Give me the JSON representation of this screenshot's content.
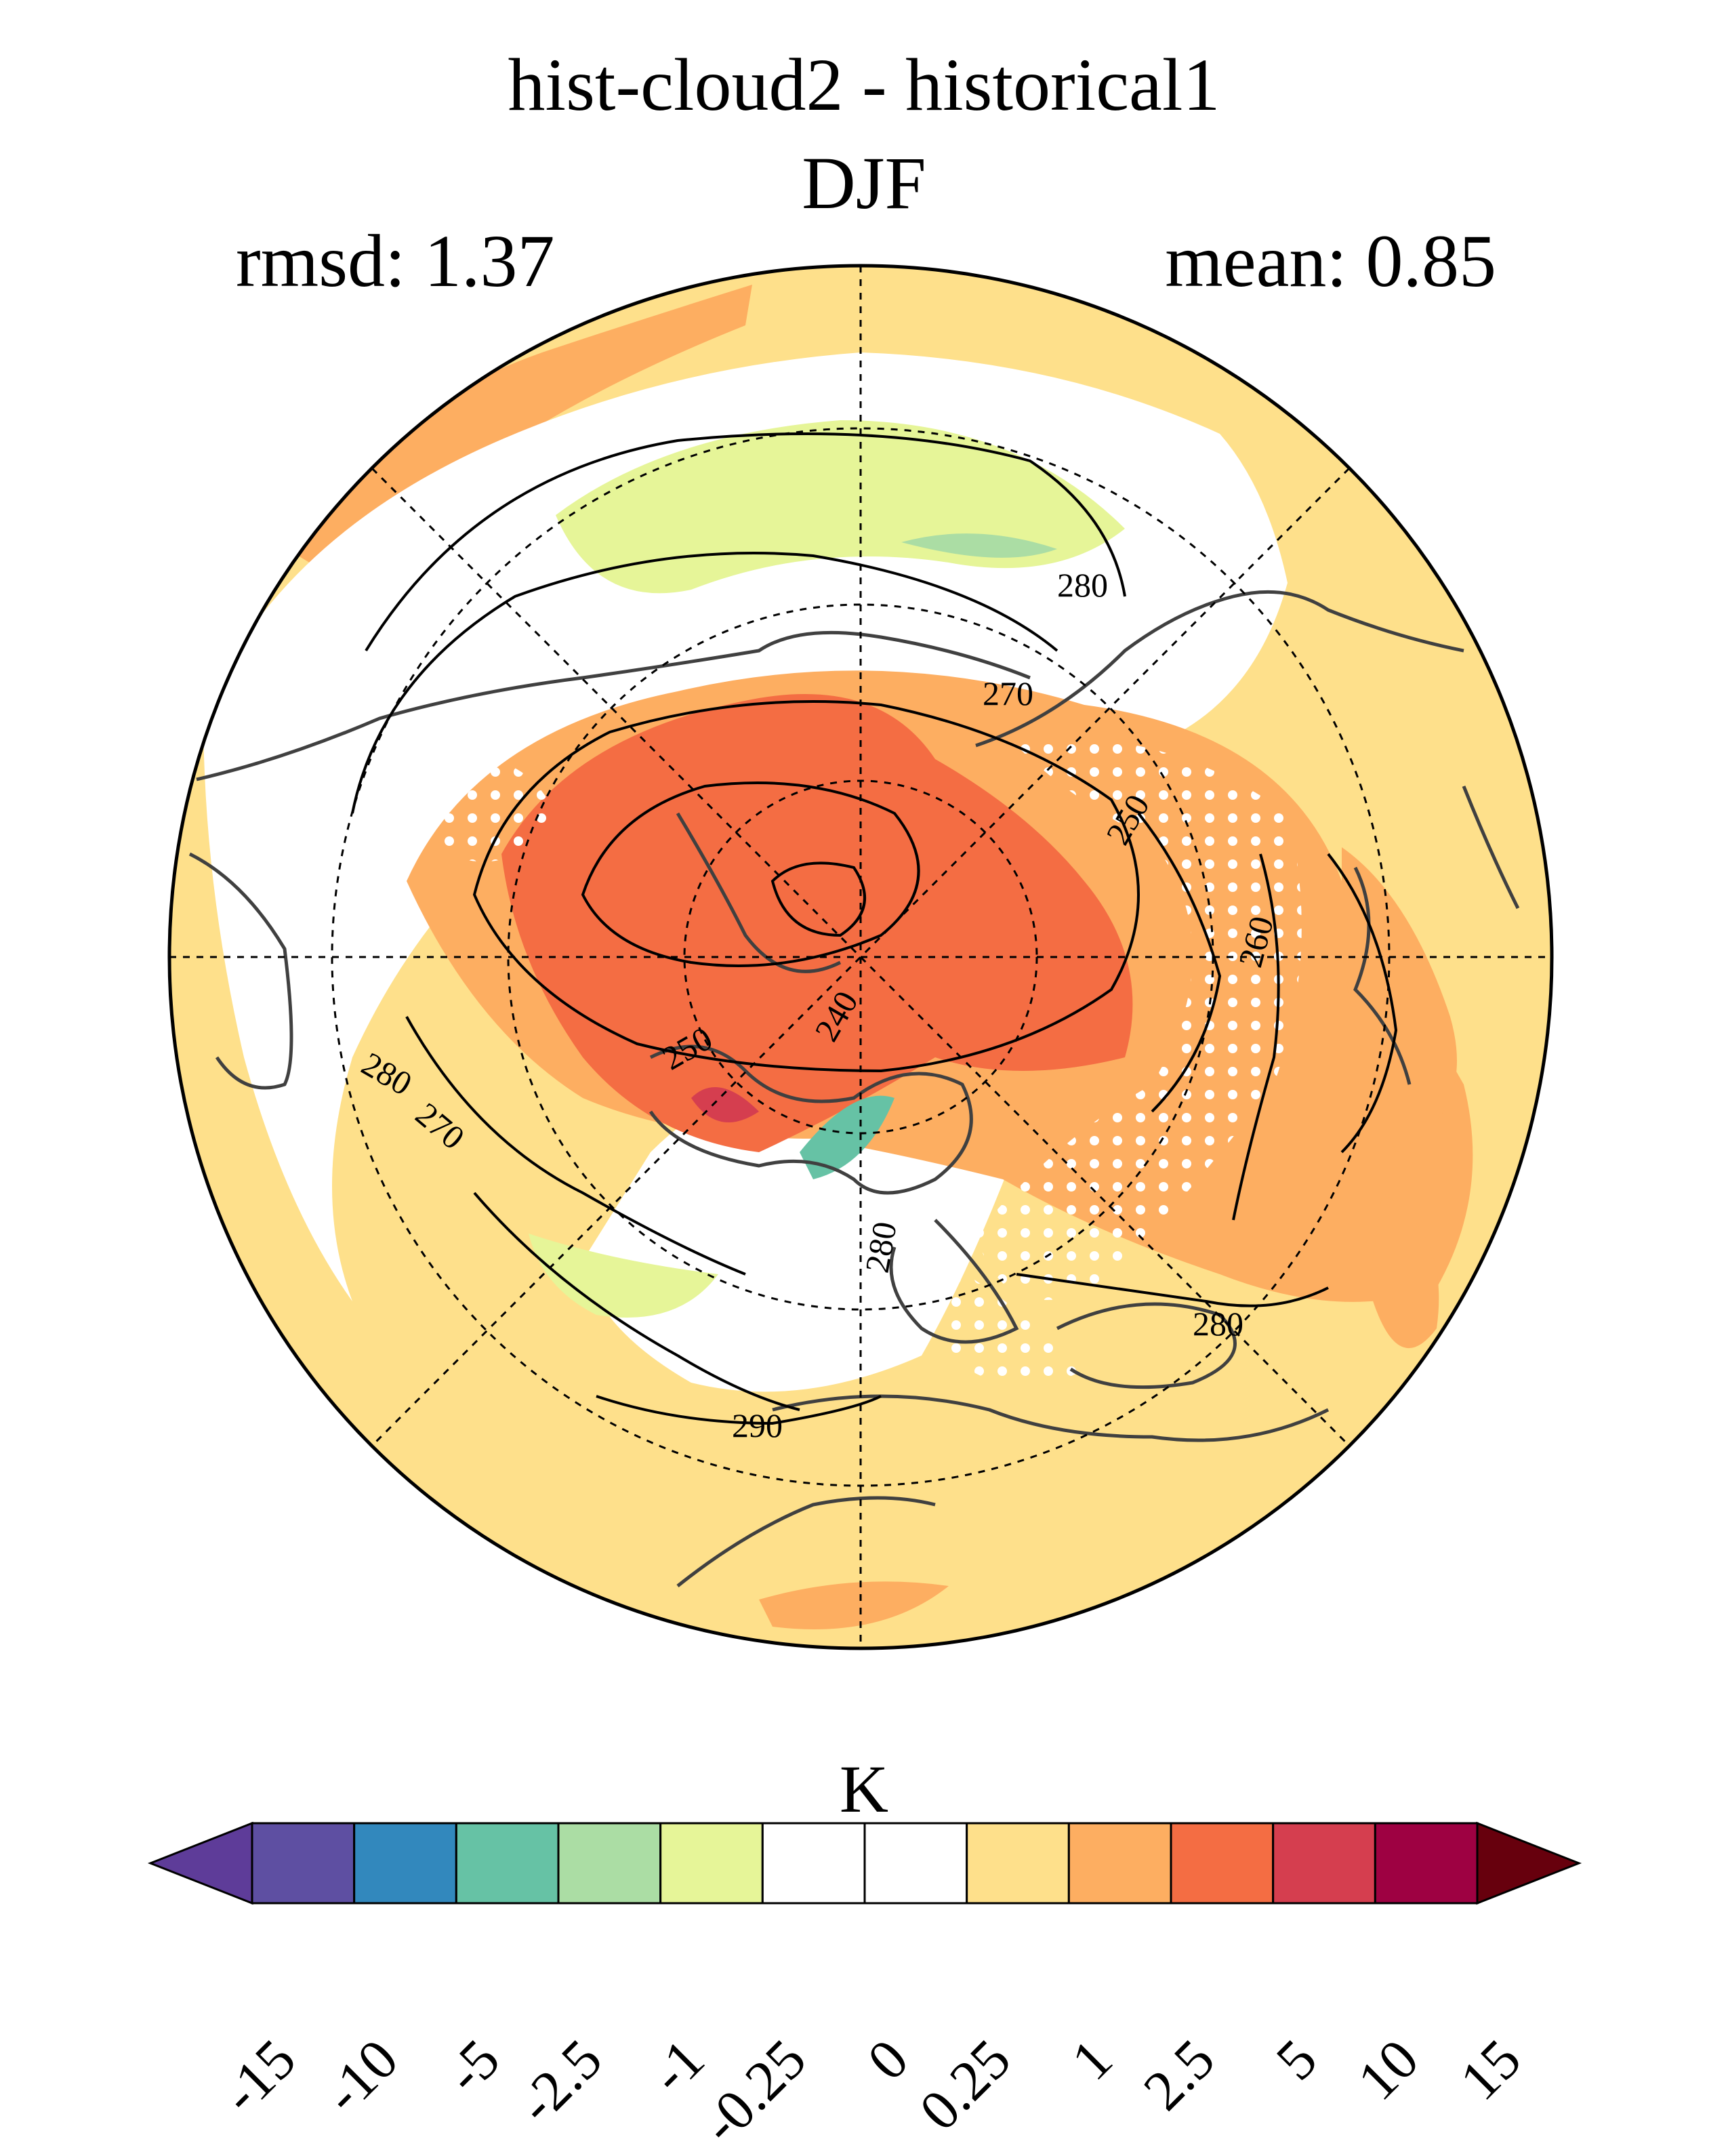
{
  "title_line1": "hist-cloud2 - historical1",
  "title_line2": "DJF",
  "rmsd_text": "rmsd: 1.37",
  "mean_text": "mean: 0.85",
  "map": {
    "projection": "polar-stereographic",
    "hemisphere": "north",
    "contour_labels": [
      "280",
      "270",
      "250",
      "260",
      "240",
      "250",
      "280",
      "270",
      "290",
      "280",
      "280"
    ],
    "gridlines": "dashed"
  },
  "colorbar": {
    "units": "K",
    "levels": [
      "-15",
      "-10",
      "-5",
      "-2.5",
      "-1",
      "-0.25",
      "0",
      "0.25",
      "1",
      "2.5",
      "5",
      "10",
      "15"
    ],
    "colors": [
      "#5e4fa2",
      "#3288bd",
      "#66c2a5",
      "#abdda4",
      "#e6f598",
      "#ffffff",
      "#ffffff",
      "#fee08b",
      "#fdae61",
      "#f46d43",
      "#d53e4f",
      "#9e0142"
    ],
    "extend_low_color": "#5e3c99",
    "extend_high_color": "#67000d"
  }
}
